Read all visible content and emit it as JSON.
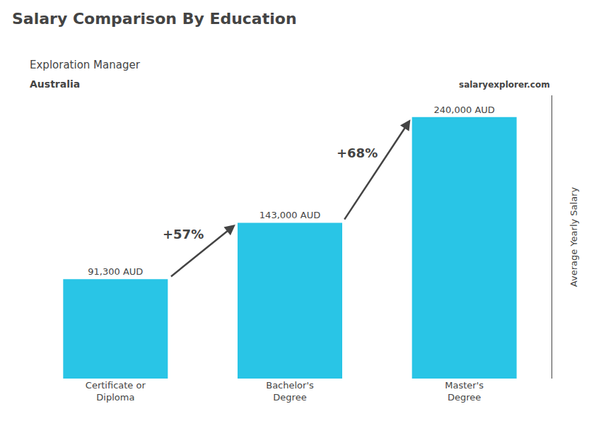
{
  "chart_data": {
    "type": "bar",
    "title": "Salary Comparison By Education",
    "subtitle": [
      "Exploration Manager",
      "Australia"
    ],
    "source": "salaryexplorer.com",
    "ylabel": "Average Yearly Salary",
    "categories": [
      "Certificate or\nDiploma",
      "Bachelor's\nDegree",
      "Master's\nDegree"
    ],
    "values": [
      91300,
      143000,
      240000
    ],
    "value_labels": [
      "91,300 AUD",
      "143,000 AUD",
      "240,000 AUD"
    ],
    "data_labels": true,
    "annotations": [
      "+57%",
      "+68%"
    ],
    "color": "#29C5E6",
    "ylim": [
      0,
      260000
    ],
    "yticks": [],
    "tick_labels": "x",
    "grid": false
  }
}
